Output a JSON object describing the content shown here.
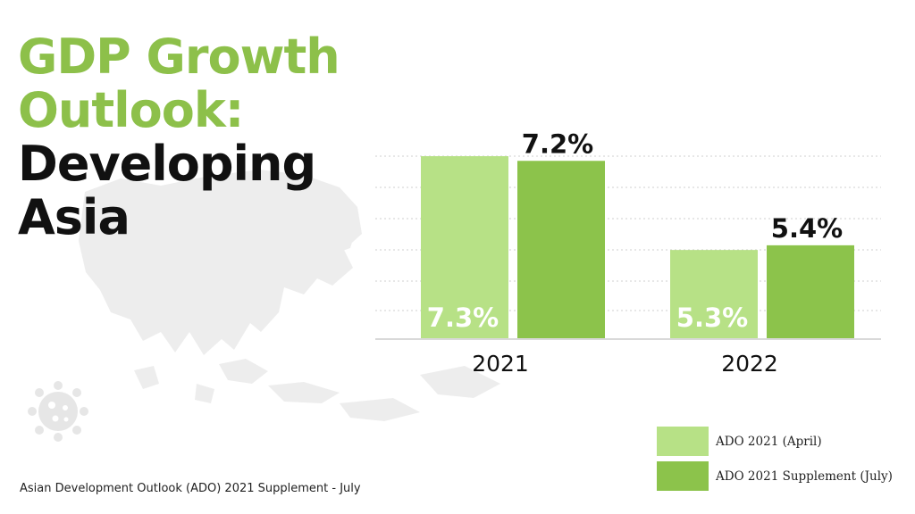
{
  "title": {
    "line1": "GDP Growth",
    "line2": "Outlook:",
    "line3": "Developing",
    "line4": "Asia"
  },
  "colors": {
    "title_green": "#8dc04a",
    "light_green": "#b7e186",
    "dark_green": "#8cc34b",
    "map_gray": "#ededed",
    "text": "#111111"
  },
  "icons": {
    "map": "asia-map-icon",
    "virus": "virus-icon"
  },
  "chart_data": {
    "type": "bar",
    "categories": [
      "2021",
      "2022"
    ],
    "series": [
      {
        "name": "ADO 2021 (April)",
        "values": [
          7.3,
          5.3
        ],
        "labels": [
          "7.3%",
          "5.3%"
        ],
        "color": "#b7e186"
      },
      {
        "name": "ADO 2021 Supplement (July)",
        "values": [
          7.2,
          5.4
        ],
        "labels": [
          "7.2%",
          "5.4%"
        ],
        "color": "#8cc34b"
      }
    ],
    "title": "GDP Growth Outlook: Developing Asia",
    "xlabel": "",
    "ylabel": "",
    "grid": true,
    "legend_position": "bottom-right"
  },
  "footer": {
    "source": "Asian Development Outlook (ADO) 2021 Supplement - July"
  }
}
